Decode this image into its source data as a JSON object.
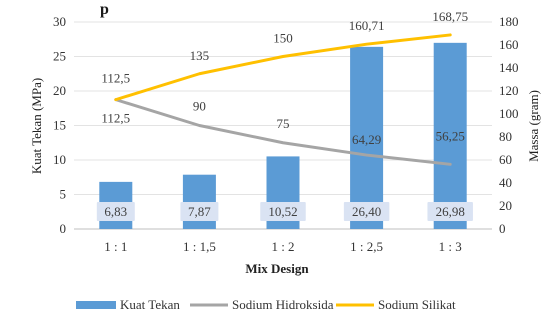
{
  "chart_data": {
    "type": "bar",
    "title_fragment": "p",
    "categories": [
      "1 : 1",
      "1 : 1,5",
      "1 : 2",
      "1 : 2,5",
      "1 : 3"
    ],
    "xlabel": "Mix Design",
    "ylabel_left": "Kuat Tekan (MPa)",
    "ylabel_right": "Massa (gram)",
    "ylim_left": [
      0,
      30
    ],
    "ylim_right": [
      0,
      180
    ],
    "yticks_left": [
      0,
      5,
      10,
      15,
      20,
      25,
      30
    ],
    "yticks_right": [
      0,
      20,
      40,
      60,
      80,
      100,
      120,
      140,
      160,
      180
    ],
    "grid": true,
    "legend_position": "bottom",
    "series": [
      {
        "name": "Kuat Tekan",
        "kind": "bar",
        "axis": "left",
        "color": "#5b9bd5",
        "values": [
          6.83,
          7.87,
          10.52,
          26.4,
          26.98
        ],
        "labels": [
          "6,83",
          "7,87",
          "10,52",
          "26,40",
          "26,98"
        ]
      },
      {
        "name": "Sodium Hidroksida",
        "kind": "line",
        "axis": "right",
        "color": "#a5a5a5",
        "values": [
          112.5,
          90,
          75,
          64.29,
          56.25
        ],
        "labels": [
          "112,5",
          "90",
          "75",
          "64,29",
          "56,25"
        ]
      },
      {
        "name": "Sodium Silikat",
        "kind": "line",
        "axis": "right",
        "color": "#ffc000",
        "values": [
          112.5,
          135,
          150,
          160.71,
          168.75
        ],
        "labels": [
          "112,5",
          "135",
          "150",
          "160,71",
          "168,75"
        ]
      }
    ]
  }
}
